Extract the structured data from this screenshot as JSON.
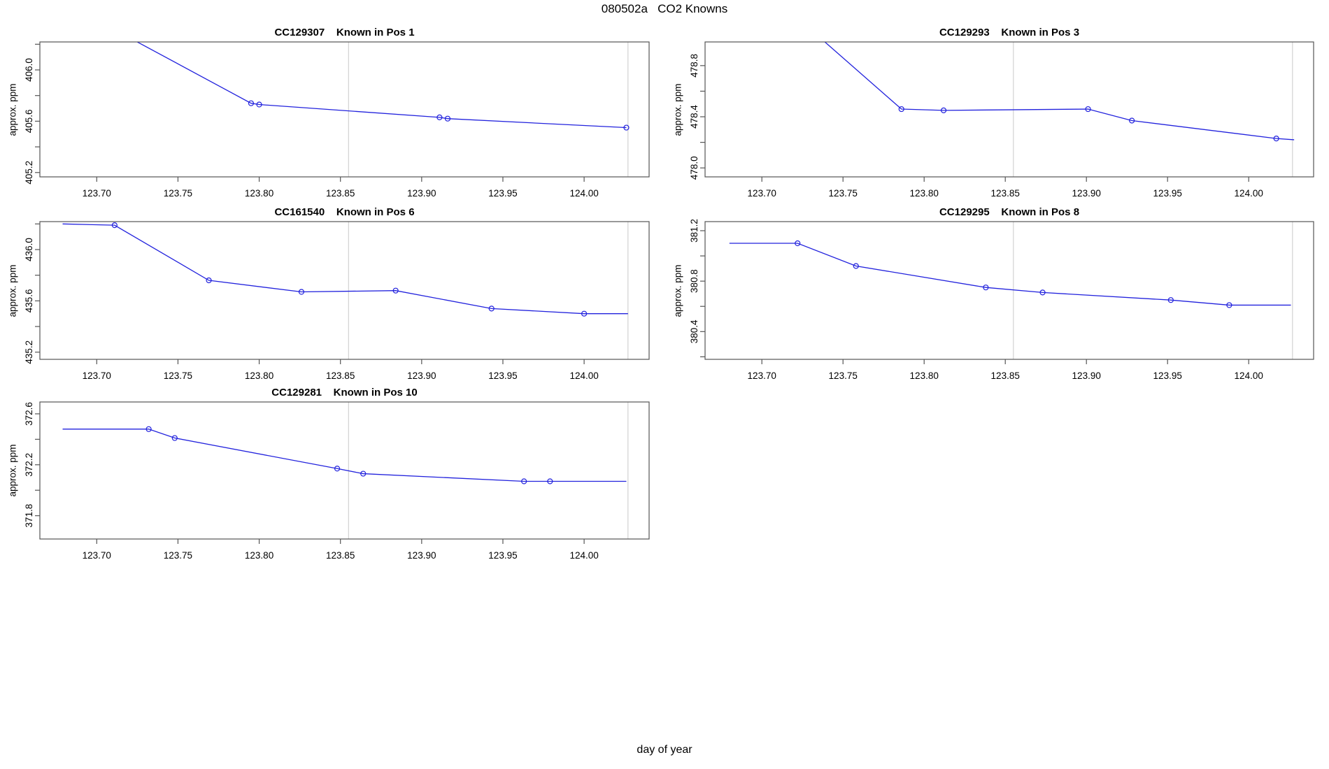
{
  "figure": {
    "title": "080502a   CO2 Knowns",
    "xlabel": "day of year",
    "background": "#ffffff"
  },
  "style": {
    "line_color": "#2222dd",
    "marker_color": "#2222dd",
    "vline_color": "#c9c9c9",
    "axis_color": "#555555",
    "text_color": "#000000"
  },
  "chart_data": [
    {
      "type": "line",
      "title": "CC129307    Known in Pos 1",
      "chamber_id": "CC129307",
      "position_label": "Known in Pos 1",
      "ylabel": "approx. ppm",
      "xlim": [
        123.665,
        124.04
      ],
      "ylim": [
        405.166,
        406.218
      ],
      "x_ticks": [
        123.7,
        123.75,
        123.8,
        123.85,
        123.9,
        123.95,
        124.0
      ],
      "x_tick_labels": [
        "123.70",
        "123.75",
        "123.80",
        "123.85",
        "123.90",
        "123.95",
        "124.00"
      ],
      "y_ticks": [
        405.2,
        405.4,
        405.6,
        405.8,
        406.0,
        406.2
      ],
      "y_tick_labels": [
        "405.2",
        "",
        "405.6",
        "",
        "406.0",
        ""
      ],
      "vlines": [
        123.855,
        124.027
      ],
      "x": [
        123.71,
        123.795,
        123.8,
        123.911,
        123.916,
        124.026
      ],
      "y": [
        406.32,
        405.74,
        405.73,
        405.63,
        405.62,
        405.55
      ],
      "markers": [
        false,
        true,
        true,
        true,
        true,
        true
      ],
      "grid": false,
      "legend": null
    },
    {
      "type": "line",
      "title": "CC129293    Known in Pos 3",
      "chamber_id": "CC129293",
      "position_label": "Known in Pos 3",
      "ylabel": "approx. ppm",
      "xlim": [
        123.665,
        124.04
      ],
      "ylim": [
        477.93,
        478.985
      ],
      "x_ticks": [
        123.7,
        123.75,
        123.8,
        123.85,
        123.9,
        123.95,
        124.0
      ],
      "x_tick_labels": [
        "123.70",
        "123.75",
        "123.80",
        "123.85",
        "123.90",
        "123.95",
        "124.00"
      ],
      "y_ticks": [
        478.0,
        478.2,
        478.4,
        478.6,
        478.8
      ],
      "y_tick_labels": [
        "478.0",
        "",
        "478.4",
        "",
        "478.8"
      ],
      "vlines": [
        123.855,
        124.027
      ],
      "x": [
        123.715,
        123.786,
        123.812,
        123.901,
        123.928,
        124.017,
        124.028
      ],
      "y": [
        479.25,
        478.46,
        478.45,
        478.46,
        478.37,
        478.23,
        478.22
      ],
      "markers": [
        false,
        true,
        true,
        true,
        true,
        true,
        false
      ],
      "grid": false,
      "legend": null
    },
    {
      "type": "line",
      "title": "CC161540    Known in Pos 6",
      "chamber_id": "CC161540",
      "position_label": "Known in Pos 6",
      "ylabel": "approx. ppm",
      "xlim": [
        123.665,
        124.04
      ],
      "ylim": [
        435.144,
        436.218
      ],
      "x_ticks": [
        123.7,
        123.75,
        123.8,
        123.85,
        123.9,
        123.95,
        124.0
      ],
      "x_tick_labels": [
        "123.70",
        "123.75",
        "123.80",
        "123.85",
        "123.90",
        "123.95",
        "124.00"
      ],
      "y_ticks": [
        435.2,
        435.4,
        435.6,
        435.8,
        436.0,
        436.2
      ],
      "y_tick_labels": [
        "435.2",
        "",
        "435.6",
        "",
        "436.0",
        ""
      ],
      "vlines": [
        123.855,
        124.027
      ],
      "x": [
        123.679,
        123.711,
        123.769,
        123.826,
        123.884,
        123.943,
        124.0,
        124.027
      ],
      "y": [
        436.2,
        436.19,
        435.76,
        435.67,
        435.68,
        435.54,
        435.5,
        435.5
      ],
      "markers": [
        false,
        true,
        true,
        true,
        true,
        true,
        true,
        false
      ],
      "grid": false,
      "legend": null
    },
    {
      "type": "line",
      "title": "CC129295    Known in Pos 8",
      "chamber_id": "CC129295",
      "position_label": "Known in Pos 8",
      "ylabel": "approx. ppm",
      "xlim": [
        123.665,
        124.04
      ],
      "ylim": [
        380.18,
        381.272
      ],
      "x_ticks": [
        123.7,
        123.75,
        123.8,
        123.85,
        123.9,
        123.95,
        124.0
      ],
      "x_tick_labels": [
        "123.70",
        "123.75",
        "123.80",
        "123.85",
        "123.90",
        "123.95",
        "124.00"
      ],
      "y_ticks": [
        380.2,
        380.4,
        380.6,
        380.8,
        381.0,
        381.2
      ],
      "y_tick_labels": [
        "",
        "380.4",
        "",
        "380.8",
        "",
        "381.2"
      ],
      "vlines": [
        123.855,
        124.027
      ],
      "x": [
        123.68,
        123.722,
        123.758,
        123.838,
        123.873,
        123.952,
        123.988,
        124.026
      ],
      "y": [
        381.1,
        381.1,
        380.92,
        380.75,
        380.71,
        380.65,
        380.61,
        380.61
      ],
      "markers": [
        false,
        true,
        true,
        true,
        true,
        true,
        true,
        false
      ],
      "grid": false,
      "legend": null
    },
    {
      "type": "line",
      "title": "CC129281    Known in Pos 10",
      "chamber_id": "CC129281",
      "position_label": "Known in Pos 10",
      "ylabel": "approx. ppm",
      "xlim": [
        123.665,
        124.04
      ],
      "ylim": [
        371.617,
        372.693
      ],
      "x_ticks": [
        123.7,
        123.75,
        123.8,
        123.85,
        123.9,
        123.95,
        124.0
      ],
      "x_tick_labels": [
        "123.70",
        "123.75",
        "123.80",
        "123.85",
        "123.90",
        "123.95",
        "124.00"
      ],
      "y_ticks": [
        371.8,
        372.0,
        372.2,
        372.4,
        372.6
      ],
      "y_tick_labels": [
        "371.8",
        "",
        "372.2",
        "",
        "372.6"
      ],
      "vlines": [
        123.855,
        124.027
      ],
      "x": [
        123.679,
        123.732,
        123.748,
        123.848,
        123.864,
        123.963,
        123.979,
        124.026
      ],
      "y": [
        372.48,
        372.48,
        372.41,
        372.17,
        372.13,
        372.07,
        372.07,
        372.07
      ],
      "markers": [
        false,
        true,
        true,
        true,
        true,
        true,
        true,
        false
      ],
      "grid": false,
      "legend": null
    }
  ]
}
